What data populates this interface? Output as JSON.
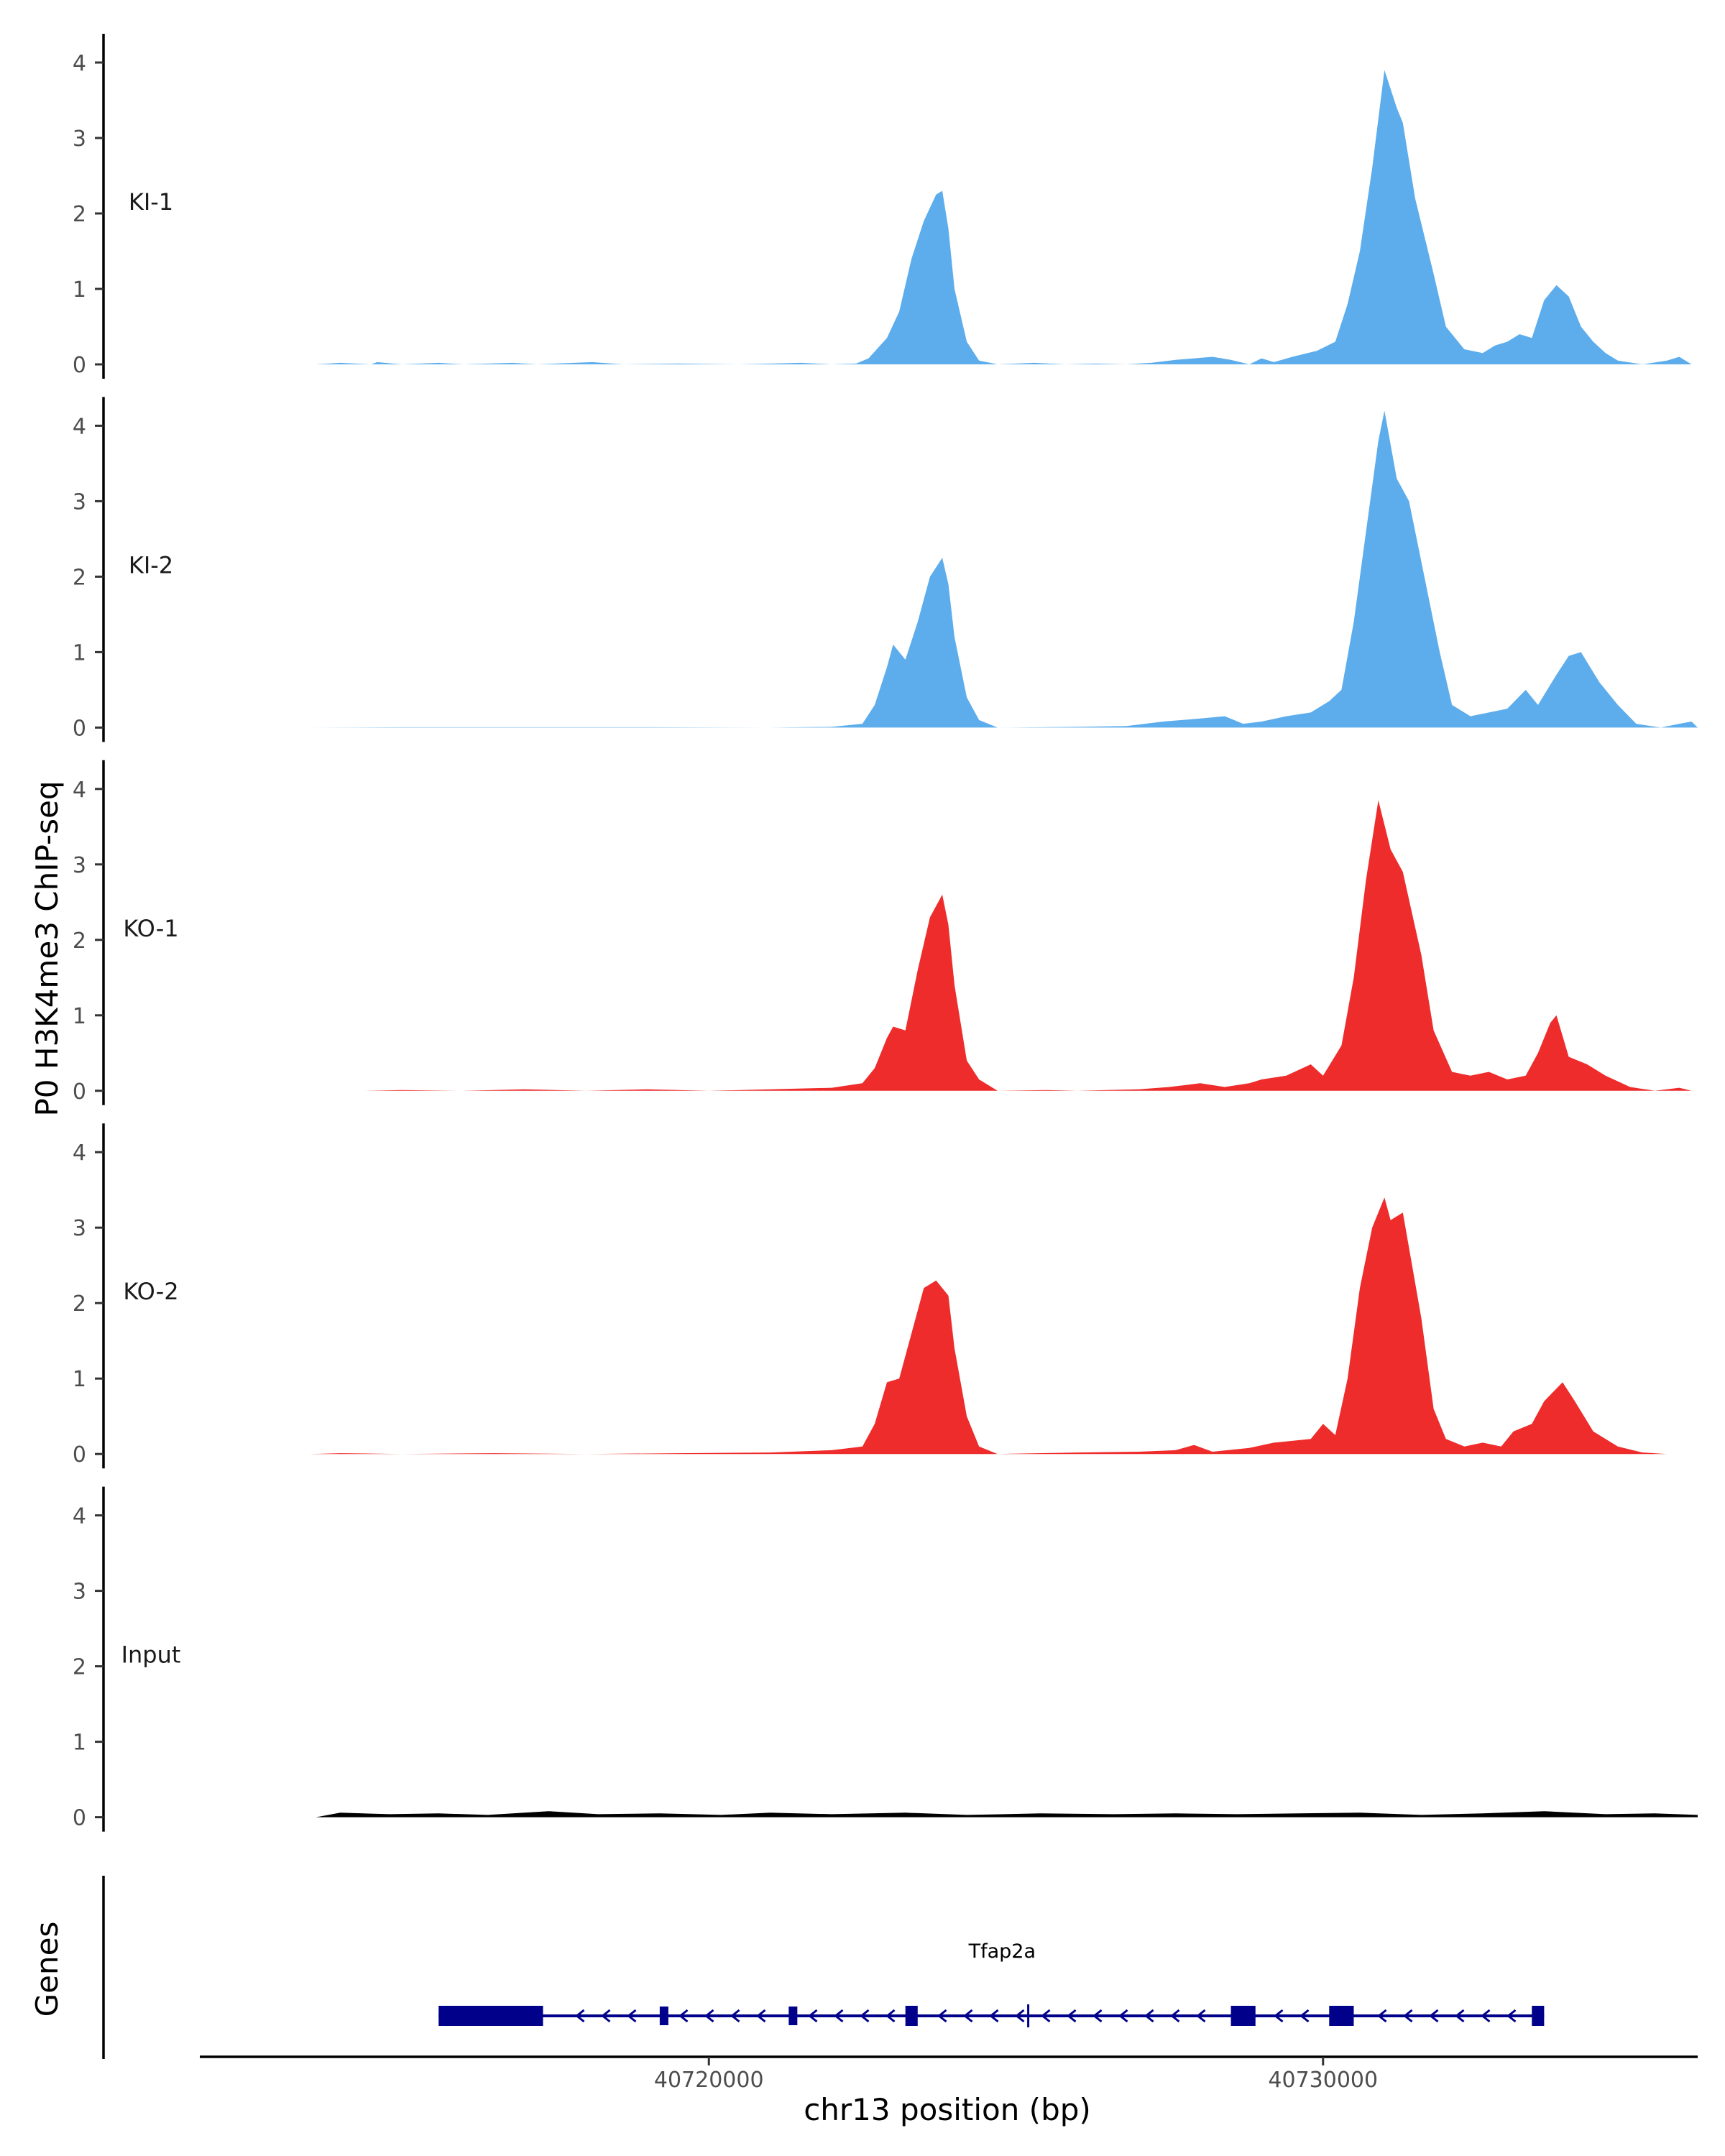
{
  "chart_data": {
    "type": "area",
    "ylabel": "P0 H3K4me3 ChIP-seq",
    "xlabel": "chr13 position (bp)",
    "genes_label": "Genes",
    "xlim": [
      40711700,
      40736100
    ],
    "ylim": [
      0,
      4.3
    ],
    "yticks": [
      0,
      1,
      2,
      3,
      4
    ],
    "xticks": [
      {
        "value": 40720000,
        "label": "40720000"
      },
      {
        "value": 40730000,
        "label": "40730000"
      }
    ],
    "series": [
      {
        "name": "KI-1",
        "color": "#5DADEC",
        "points": [
          [
            40713600,
            0
          ],
          [
            40714000,
            0.02
          ],
          [
            40714500,
            0
          ],
          [
            40714600,
            0.03
          ],
          [
            40715000,
            0
          ],
          [
            40715600,
            0.02
          ],
          [
            40716000,
            0
          ],
          [
            40716800,
            0.02
          ],
          [
            40717200,
            0
          ],
          [
            40718100,
            0.03
          ],
          [
            40718600,
            0
          ],
          [
            40719500,
            0.01
          ],
          [
            40720500,
            0
          ],
          [
            40721500,
            0.02
          ],
          [
            40722000,
            0
          ],
          [
            40722400,
            0.01
          ],
          [
            40722600,
            0.08
          ],
          [
            40722900,
            0.35
          ],
          [
            40723100,
            0.7
          ],
          [
            40723300,
            1.4
          ],
          [
            40723500,
            1.9
          ],
          [
            40723700,
            2.25
          ],
          [
            40723800,
            2.3
          ],
          [
            40723900,
            1.8
          ],
          [
            40724000,
            1.0
          ],
          [
            40724200,
            0.3
          ],
          [
            40724400,
            0.05
          ],
          [
            40724700,
            0
          ],
          [
            40725300,
            0.02
          ],
          [
            40725800,
            0
          ],
          [
            40726300,
            0.01
          ],
          [
            40726800,
            0
          ],
          [
            40727200,
            0.02
          ],
          [
            40727600,
            0.06
          ],
          [
            40728200,
            0.1
          ],
          [
            40728500,
            0.06
          ],
          [
            40728800,
            0
          ],
          [
            40729000,
            0.08
          ],
          [
            40729200,
            0.03
          ],
          [
            40729500,
            0.1
          ],
          [
            40729900,
            0.18
          ],
          [
            40730200,
            0.3
          ],
          [
            40730400,
            0.8
          ],
          [
            40730600,
            1.5
          ],
          [
            40730800,
            2.6
          ],
          [
            40731000,
            3.9
          ],
          [
            40731200,
            3.4
          ],
          [
            40731300,
            3.2
          ],
          [
            40731500,
            2.2
          ],
          [
            40731800,
            1.2
          ],
          [
            40732000,
            0.5
          ],
          [
            40732300,
            0.2
          ],
          [
            40732600,
            0.15
          ],
          [
            40732800,
            0.25
          ],
          [
            40733000,
            0.3
          ],
          [
            40733200,
            0.4
          ],
          [
            40733400,
            0.35
          ],
          [
            40733600,
            0.85
          ],
          [
            40733800,
            1.05
          ],
          [
            40734000,
            0.9
          ],
          [
            40734200,
            0.5
          ],
          [
            40734400,
            0.3
          ],
          [
            40734600,
            0.15
          ],
          [
            40734800,
            0.05
          ],
          [
            40735200,
            0
          ],
          [
            40735600,
            0.05
          ],
          [
            40735800,
            0.1
          ],
          [
            40736000,
            0
          ]
        ]
      },
      {
        "name": "KI-2",
        "color": "#5DADEC",
        "points": [
          [
            40713500,
            0
          ],
          [
            40715000,
            0.005
          ],
          [
            40717500,
            0.005
          ],
          [
            40719000,
            0.005
          ],
          [
            40721000,
            0
          ],
          [
            40722000,
            0.01
          ],
          [
            40722500,
            0.05
          ],
          [
            40722700,
            0.3
          ],
          [
            40722900,
            0.8
          ],
          [
            40723000,
            1.1
          ],
          [
            40723200,
            0.9
          ],
          [
            40723400,
            1.4
          ],
          [
            40723600,
            2.0
          ],
          [
            40723800,
            2.25
          ],
          [
            40723900,
            1.9
          ],
          [
            40724000,
            1.2
          ],
          [
            40724200,
            0.4
          ],
          [
            40724400,
            0.1
          ],
          [
            40724700,
            0
          ],
          [
            40726000,
            0.01
          ],
          [
            40726800,
            0.02
          ],
          [
            40727400,
            0.08
          ],
          [
            40728000,
            0.12
          ],
          [
            40728400,
            0.15
          ],
          [
            40728700,
            0.05
          ],
          [
            40729000,
            0.08
          ],
          [
            40729400,
            0.15
          ],
          [
            40729800,
            0.2
          ],
          [
            40730100,
            0.35
          ],
          [
            40730300,
            0.5
          ],
          [
            40730500,
            1.4
          ],
          [
            40730700,
            2.6
          ],
          [
            40730900,
            3.8
          ],
          [
            40731000,
            4.2
          ],
          [
            40731200,
            3.3
          ],
          [
            40731400,
            3.0
          ],
          [
            40731700,
            1.8
          ],
          [
            40731900,
            1.0
          ],
          [
            40732100,
            0.3
          ],
          [
            40732400,
            0.15
          ],
          [
            40732700,
            0.2
          ],
          [
            40733000,
            0.25
          ],
          [
            40733300,
            0.5
          ],
          [
            40733500,
            0.3
          ],
          [
            40733800,
            0.7
          ],
          [
            40734000,
            0.95
          ],
          [
            40734200,
            1.0
          ],
          [
            40734500,
            0.6
          ],
          [
            40734800,
            0.3
          ],
          [
            40735100,
            0.05
          ],
          [
            40735500,
            0
          ],
          [
            40735800,
            0.05
          ],
          [
            40736000,
            0.08
          ],
          [
            40736100,
            0
          ]
        ]
      },
      {
        "name": "KO-1",
        "color": "#EE2C2C",
        "points": [
          [
            40714400,
            0
          ],
          [
            40715000,
            0.01
          ],
          [
            40716000,
            0
          ],
          [
            40717000,
            0.02
          ],
          [
            40718000,
            0
          ],
          [
            40719000,
            0.02
          ],
          [
            40720000,
            0
          ],
          [
            40721000,
            0.02
          ],
          [
            40722000,
            0.04
          ],
          [
            40722500,
            0.1
          ],
          [
            40722700,
            0.3
          ],
          [
            40722900,
            0.7
          ],
          [
            40723000,
            0.85
          ],
          [
            40723200,
            0.8
          ],
          [
            40723400,
            1.6
          ],
          [
            40723600,
            2.3
          ],
          [
            40723800,
            2.6
          ],
          [
            40723900,
            2.2
          ],
          [
            40724000,
            1.4
          ],
          [
            40724200,
            0.4
          ],
          [
            40724400,
            0.15
          ],
          [
            40724700,
            0
          ],
          [
            40725500,
            0.01
          ],
          [
            40726000,
            0
          ],
          [
            40727000,
            0.02
          ],
          [
            40727500,
            0.05
          ],
          [
            40728000,
            0.1
          ],
          [
            40728400,
            0.05
          ],
          [
            40728800,
            0.1
          ],
          [
            40729000,
            0.15
          ],
          [
            40729400,
            0.2
          ],
          [
            40729800,
            0.35
          ],
          [
            40730000,
            0.2
          ],
          [
            40730300,
            0.6
          ],
          [
            40730500,
            1.5
          ],
          [
            40730700,
            2.8
          ],
          [
            40730900,
            3.85
          ],
          [
            40731100,
            3.2
          ],
          [
            40731300,
            2.9
          ],
          [
            40731600,
            1.8
          ],
          [
            40731800,
            0.8
          ],
          [
            40732100,
            0.25
          ],
          [
            40732400,
            0.2
          ],
          [
            40732700,
            0.25
          ],
          [
            40733000,
            0.15
          ],
          [
            40733300,
            0.2
          ],
          [
            40733500,
            0.5
          ],
          [
            40733700,
            0.9
          ],
          [
            40733800,
            1.0
          ],
          [
            40734000,
            0.45
          ],
          [
            40734300,
            0.35
          ],
          [
            40734600,
            0.2
          ],
          [
            40735000,
            0.05
          ],
          [
            40735400,
            0
          ],
          [
            40735800,
            0.04
          ],
          [
            40736000,
            0
          ]
        ]
      },
      {
        "name": "KO-2",
        "color": "#EE2C2C",
        "points": [
          [
            40713500,
            0
          ],
          [
            40714000,
            0.01
          ],
          [
            40715000,
            0
          ],
          [
            40716500,
            0.01
          ],
          [
            40718000,
            0
          ],
          [
            40719500,
            0.01
          ],
          [
            40721000,
            0.02
          ],
          [
            40722000,
            0.05
          ],
          [
            40722500,
            0.1
          ],
          [
            40722700,
            0.4
          ],
          [
            40722900,
            0.95
          ],
          [
            40723100,
            1.0
          ],
          [
            40723300,
            1.6
          ],
          [
            40723500,
            2.2
          ],
          [
            40723700,
            2.3
          ],
          [
            40723900,
            2.1
          ],
          [
            40724000,
            1.4
          ],
          [
            40724200,
            0.5
          ],
          [
            40724400,
            0.1
          ],
          [
            40724700,
            0
          ],
          [
            40726000,
            0.02
          ],
          [
            40727000,
            0.03
          ],
          [
            40727600,
            0.05
          ],
          [
            40727900,
            0.12
          ],
          [
            40728200,
            0.03
          ],
          [
            40728800,
            0.08
          ],
          [
            40729200,
            0.15
          ],
          [
            40729800,
            0.2
          ],
          [
            40730000,
            0.4
          ],
          [
            40730200,
            0.25
          ],
          [
            40730400,
            1.0
          ],
          [
            40730600,
            2.2
          ],
          [
            40730800,
            3.0
          ],
          [
            40731000,
            3.4
          ],
          [
            40731100,
            3.1
          ],
          [
            40731300,
            3.2
          ],
          [
            40731600,
            1.8
          ],
          [
            40731800,
            0.6
          ],
          [
            40732000,
            0.2
          ],
          [
            40732300,
            0.1
          ],
          [
            40732600,
            0.15
          ],
          [
            40732900,
            0.1
          ],
          [
            40733100,
            0.3
          ],
          [
            40733400,
            0.4
          ],
          [
            40733600,
            0.7
          ],
          [
            40733900,
            0.95
          ],
          [
            40734100,
            0.7
          ],
          [
            40734400,
            0.3
          ],
          [
            40734800,
            0.1
          ],
          [
            40735200,
            0.02
          ],
          [
            40735600,
            0
          ],
          [
            40736000,
            0
          ]
        ]
      },
      {
        "name": "Input",
        "color": "#000000",
        "points": [
          [
            40713600,
            0
          ],
          [
            40714000,
            0.06
          ],
          [
            40714800,
            0.04
          ],
          [
            40715600,
            0.05
          ],
          [
            40716400,
            0.03
          ],
          [
            40717400,
            0.08
          ],
          [
            40718200,
            0.04
          ],
          [
            40719200,
            0.05
          ],
          [
            40720200,
            0.03
          ],
          [
            40721000,
            0.06
          ],
          [
            40722000,
            0.04
          ],
          [
            40723200,
            0.06
          ],
          [
            40724200,
            0.03
          ],
          [
            40725400,
            0.05
          ],
          [
            40726600,
            0.04
          ],
          [
            40727600,
            0.05
          ],
          [
            40728600,
            0.04
          ],
          [
            40729600,
            0.05
          ],
          [
            40730600,
            0.06
          ],
          [
            40731600,
            0.03
          ],
          [
            40732600,
            0.05
          ],
          [
            40733600,
            0.08
          ],
          [
            40734600,
            0.04
          ],
          [
            40735400,
            0.05
          ],
          [
            40736100,
            0.03
          ]
        ]
      }
    ],
    "gene_track": {
      "gene": "Tfap2a",
      "color": "#00008B",
      "strand": "-",
      "start": 40715600,
      "end": 40733600,
      "exons": [
        [
          40715600,
          40717300
        ],
        [
          40719200,
          40719300
        ],
        [
          40721300,
          40721400
        ],
        [
          40723200,
          40723400
        ],
        [
          40728500,
          40728900
        ],
        [
          40730100,
          40730500
        ],
        [
          40733400,
          40733600
        ]
      ],
      "marker": 40725200
    }
  }
}
